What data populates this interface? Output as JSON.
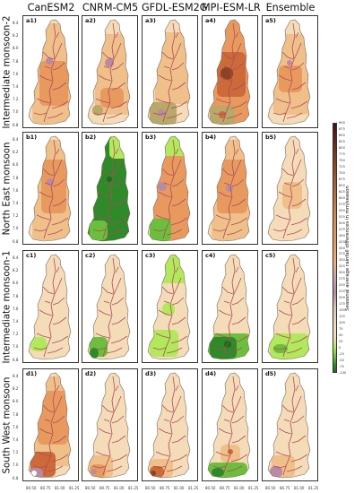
{
  "models": [
    "CanESM2",
    "CNRM-CM5",
    "GFDL-ESM2G",
    "MPI-ESM-LR",
    "Ensemble"
  ],
  "seasons": [
    "Intermediate monsoon-2",
    "North East monsoon",
    "Intermediate monsoon-1",
    "South West monsoon"
  ],
  "panel_labels": [
    [
      "a1",
      "a2",
      "a3",
      "a4",
      "a5"
    ],
    [
      "b1",
      "b2",
      "b3",
      "b4",
      "b5"
    ],
    [
      "c1",
      "c2",
      "c3",
      "c4",
      "c5"
    ],
    [
      "d1",
      "d2",
      "d3",
      "d4",
      "d5"
    ]
  ],
  "y_ticks": [
    "8.4",
    "8.2",
    "8.0",
    "7.8",
    "7.6",
    "7.4",
    "7.2",
    "7.0",
    "6.8"
  ],
  "x_ticks": [
    "80.50",
    "80.75",
    "81.00",
    "81.25"
  ],
  "colorbar": {
    "label": "Seasonal average rainfall differences in mm/season",
    "ticks": [
      "900",
      "875",
      "850",
      "825",
      "800",
      "775",
      "750",
      "725",
      "700",
      "675",
      "650",
      "625",
      "600",
      "575",
      "550",
      "525",
      "500",
      "475",
      "450",
      "425",
      "400",
      "375",
      "350",
      "325",
      "300",
      "275",
      "250",
      "225",
      "200",
      "175",
      "150",
      "125",
      "100",
      "75",
      "50",
      "25",
      "0",
      "-25",
      "-50",
      "-75",
      "-100"
    ]
  },
  "colors": {
    "base": "#f4dcb8",
    "light_orange": "#f0c08a",
    "orange": "#e89a5e",
    "deep_orange": "#cc6a3a",
    "brown": "#8a4424",
    "mauve": "#b88aa4",
    "olive": "#b8a86a",
    "green_light": "#b2e85c",
    "green_mid": "#6cbf3c",
    "green_dark": "#2f8a2a",
    "green_deep": "#1e6b1e",
    "river": "#b04a5a",
    "outline": "#7a6a5a"
  }
}
